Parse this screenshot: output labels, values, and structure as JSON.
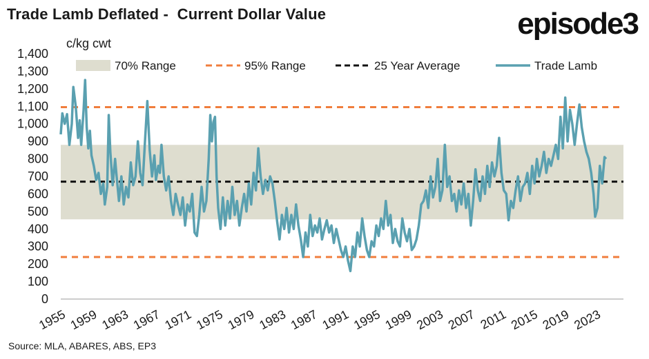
{
  "title": "Trade Lamb Deflated -  Current Dollar Value",
  "logo": "episode3",
  "source": "Source: MLA, ABARES, ABS, EP3",
  "colors": {
    "band": "#deddcf",
    "range95": "#f07d3c",
    "average": "#111111",
    "series": "#5aa0b0"
  },
  "chart_data": {
    "type": "line",
    "ylabel": "c/kg cwt",
    "ylim": [
      0,
      1400
    ],
    "yticks": [
      0,
      100,
      200,
      300,
      400,
      500,
      600,
      700,
      800,
      900,
      1000,
      1100,
      1200,
      1300,
      1400
    ],
    "xlim": [
      1955,
      2026.5
    ],
    "xticks": [
      1955,
      1959,
      1963,
      1967,
      1971,
      1975,
      1979,
      1983,
      1987,
      1991,
      1995,
      1999,
      2003,
      2007,
      2011,
      2015,
      2019,
      2023
    ],
    "grid": false,
    "legend_position": "top",
    "legend": [
      "70% Range",
      "95% Range",
      "25 Year Average",
      "Trade Lamb"
    ],
    "range_70": [
      455,
      880
    ],
    "range_95": [
      240,
      1095
    ],
    "average_25yr": 670,
    "series": [
      {
        "name": "Trade Lamb",
        "points": [
          [
            1955.0,
            940
          ],
          [
            1955.2,
            1060
          ],
          [
            1955.5,
            1000
          ],
          [
            1955.8,
            1055
          ],
          [
            1956.1,
            880
          ],
          [
            1956.4,
            1000
          ],
          [
            1956.6,
            1210
          ],
          [
            1956.9,
            1100
          ],
          [
            1957.2,
            920
          ],
          [
            1957.4,
            1020
          ],
          [
            1957.6,
            880
          ],
          [
            1957.9,
            1080
          ],
          [
            1958.1,
            1250
          ],
          [
            1958.3,
            980
          ],
          [
            1958.5,
            860
          ],
          [
            1958.7,
            960
          ],
          [
            1958.9,
            820
          ],
          [
            1959.2,
            760
          ],
          [
            1959.5,
            680
          ],
          [
            1959.8,
            720
          ],
          [
            1960.1,
            600
          ],
          [
            1960.4,
            660
          ],
          [
            1960.6,
            540
          ],
          [
            1960.9,
            640
          ],
          [
            1961.1,
            1050
          ],
          [
            1961.3,
            840
          ],
          [
            1961.6,
            650
          ],
          [
            1961.9,
            800
          ],
          [
            1962.1,
            700
          ],
          [
            1962.4,
            560
          ],
          [
            1962.7,
            700
          ],
          [
            1963.0,
            540
          ],
          [
            1963.3,
            640
          ],
          [
            1963.6,
            580
          ],
          [
            1963.9,
            780
          ],
          [
            1964.2,
            650
          ],
          [
            1964.5,
            700
          ],
          [
            1964.8,
            900
          ],
          [
            1965.1,
            720
          ],
          [
            1965.4,
            650
          ],
          [
            1965.7,
            900
          ],
          [
            1966.0,
            1130
          ],
          [
            1966.3,
            850
          ],
          [
            1966.6,
            700
          ],
          [
            1966.9,
            820
          ],
          [
            1967.1,
            680
          ],
          [
            1967.4,
            760
          ],
          [
            1967.6,
            720
          ],
          [
            1967.8,
            880
          ],
          [
            1968.1,
            700
          ],
          [
            1968.4,
            620
          ],
          [
            1968.7,
            700
          ],
          [
            1969.0,
            560
          ],
          [
            1969.3,
            480
          ],
          [
            1969.6,
            600
          ],
          [
            1969.9,
            540
          ],
          [
            1970.2,
            480
          ],
          [
            1970.5,
            580
          ],
          [
            1970.8,
            420
          ],
          [
            1971.1,
            540
          ],
          [
            1971.4,
            500
          ],
          [
            1971.7,
            600
          ],
          [
            1972.0,
            380
          ],
          [
            1972.3,
            360
          ],
          [
            1972.6,
            480
          ],
          [
            1972.9,
            640
          ],
          [
            1973.2,
            500
          ],
          [
            1973.5,
            560
          ],
          [
            1973.8,
            800
          ],
          [
            1974.0,
            1050
          ],
          [
            1974.2,
            900
          ],
          [
            1974.4,
            1010
          ],
          [
            1974.6,
            1040
          ],
          [
            1974.8,
            700
          ],
          [
            1975.0,
            520
          ],
          [
            1975.3,
            400
          ],
          [
            1975.6,
            580
          ],
          [
            1975.9,
            420
          ],
          [
            1976.2,
            560
          ],
          [
            1976.5,
            460
          ],
          [
            1976.8,
            640
          ],
          [
            1977.1,
            480
          ],
          [
            1977.4,
            560
          ],
          [
            1977.7,
            420
          ],
          [
            1978.0,
            520
          ],
          [
            1978.3,
            600
          ],
          [
            1978.6,
            500
          ],
          [
            1978.9,
            660
          ],
          [
            1979.2,
            540
          ],
          [
            1979.5,
            720
          ],
          [
            1979.8,
            620
          ],
          [
            1980.1,
            860
          ],
          [
            1980.4,
            700
          ],
          [
            1980.7,
            600
          ],
          [
            1981.0,
            680
          ],
          [
            1981.3,
            620
          ],
          [
            1981.6,
            700
          ],
          [
            1981.9,
            660
          ],
          [
            1982.2,
            560
          ],
          [
            1982.5,
            440
          ],
          [
            1982.8,
            340
          ],
          [
            1983.1,
            480
          ],
          [
            1983.4,
            400
          ],
          [
            1983.7,
            520
          ],
          [
            1984.0,
            380
          ],
          [
            1984.3,
            480
          ],
          [
            1984.6,
            400
          ],
          [
            1984.9,
            540
          ],
          [
            1985.2,
            420
          ],
          [
            1985.5,
            340
          ],
          [
            1985.8,
            240
          ],
          [
            1986.1,
            380
          ],
          [
            1986.4,
            300
          ],
          [
            1986.7,
            480
          ],
          [
            1987.0,
            360
          ],
          [
            1987.3,
            420
          ],
          [
            1987.6,
            380
          ],
          [
            1987.9,
            460
          ],
          [
            1988.2,
            340
          ],
          [
            1988.5,
            400
          ],
          [
            1988.8,
            450
          ],
          [
            1989.1,
            380
          ],
          [
            1989.4,
            420
          ],
          [
            1989.7,
            320
          ],
          [
            1990.0,
            400
          ],
          [
            1990.3,
            340
          ],
          [
            1990.6,
            280
          ],
          [
            1990.9,
            240
          ],
          [
            1991.2,
            300
          ],
          [
            1991.5,
            220
          ],
          [
            1991.8,
            160
          ],
          [
            1992.1,
            300
          ],
          [
            1992.4,
            240
          ],
          [
            1992.7,
            380
          ],
          [
            1993.0,
            300
          ],
          [
            1993.3,
            460
          ],
          [
            1993.6,
            360
          ],
          [
            1993.9,
            280
          ],
          [
            1994.2,
            240
          ],
          [
            1994.5,
            330
          ],
          [
            1994.8,
            300
          ],
          [
            1995.1,
            420
          ],
          [
            1995.4,
            360
          ],
          [
            1995.7,
            460
          ],
          [
            1996.0,
            400
          ],
          [
            1996.3,
            560
          ],
          [
            1996.6,
            420
          ],
          [
            1996.9,
            480
          ],
          [
            1997.2,
            320
          ],
          [
            1997.5,
            400
          ],
          [
            1997.8,
            330
          ],
          [
            1998.1,
            300
          ],
          [
            1998.4,
            460
          ],
          [
            1998.7,
            380
          ],
          [
            1999.0,
            330
          ],
          [
            1999.3,
            400
          ],
          [
            1999.6,
            280
          ],
          [
            1999.9,
            300
          ],
          [
            2000.2,
            340
          ],
          [
            2000.5,
            420
          ],
          [
            2000.8,
            540
          ],
          [
            2001.1,
            560
          ],
          [
            2001.4,
            620
          ],
          [
            2001.7,
            520
          ],
          [
            2002.0,
            700
          ],
          [
            2002.3,
            580
          ],
          [
            2002.6,
            640
          ],
          [
            2002.9,
            800
          ],
          [
            2003.2,
            560
          ],
          [
            2003.5,
            620
          ],
          [
            2003.8,
            880
          ],
          [
            2004.1,
            640
          ],
          [
            2004.4,
            700
          ],
          [
            2004.7,
            560
          ],
          [
            2005.0,
            600
          ],
          [
            2005.3,
            500
          ],
          [
            2005.6,
            620
          ],
          [
            2005.9,
            540
          ],
          [
            2006.2,
            660
          ],
          [
            2006.5,
            520
          ],
          [
            2006.8,
            600
          ],
          [
            2007.1,
            420
          ],
          [
            2007.4,
            560
          ],
          [
            2007.7,
            740
          ],
          [
            2008.0,
            620
          ],
          [
            2008.3,
            560
          ],
          [
            2008.6,
            700
          ],
          [
            2008.9,
            600
          ],
          [
            2009.2,
            760
          ],
          [
            2009.5,
            640
          ],
          [
            2009.8,
            780
          ],
          [
            2010.1,
            700
          ],
          [
            2010.4,
            760
          ],
          [
            2010.7,
            920
          ],
          [
            2011.0,
            720
          ],
          [
            2011.3,
            620
          ],
          [
            2011.6,
            600
          ],
          [
            2011.9,
            450
          ],
          [
            2012.2,
            560
          ],
          [
            2012.5,
            520
          ],
          [
            2012.8,
            620
          ],
          [
            2013.1,
            700
          ],
          [
            2013.4,
            560
          ],
          [
            2013.7,
            640
          ],
          [
            2014.0,
            660
          ],
          [
            2014.3,
            720
          ],
          [
            2014.6,
            600
          ],
          [
            2014.9,
            760
          ],
          [
            2015.2,
            660
          ],
          [
            2015.5,
            800
          ],
          [
            2015.8,
            700
          ],
          [
            2016.1,
            760
          ],
          [
            2016.4,
            840
          ],
          [
            2016.7,
            720
          ],
          [
            2017.0,
            800
          ],
          [
            2017.3,
            760
          ],
          [
            2017.6,
            820
          ],
          [
            2017.9,
            880
          ],
          [
            2018.2,
            800
          ],
          [
            2018.5,
            1040
          ],
          [
            2018.8,
            860
          ],
          [
            2019.1,
            1150
          ],
          [
            2019.4,
            900
          ],
          [
            2019.7,
            1080
          ],
          [
            2020.0,
            1000
          ],
          [
            2020.3,
            880
          ],
          [
            2020.6,
            1000
          ],
          [
            2020.9,
            1110
          ],
          [
            2021.2,
            980
          ],
          [
            2021.5,
            900
          ],
          [
            2021.8,
            840
          ],
          [
            2022.1,
            800
          ],
          [
            2022.4,
            720
          ],
          [
            2022.7,
            600
          ],
          [
            2022.9,
            470
          ],
          [
            2023.2,
            520
          ],
          [
            2023.5,
            760
          ],
          [
            2023.8,
            660
          ],
          [
            2024.1,
            810
          ],
          [
            2024.3,
            800
          ]
        ]
      }
    ]
  }
}
